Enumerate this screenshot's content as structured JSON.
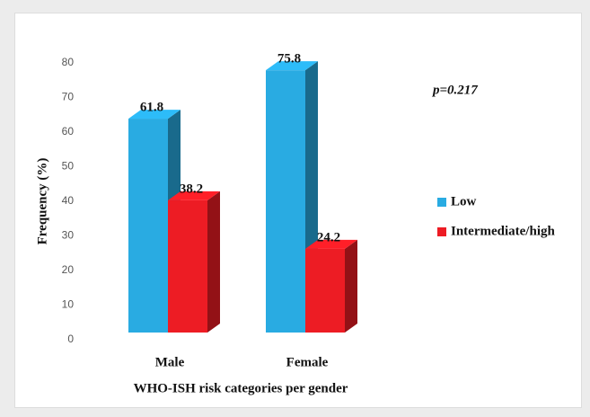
{
  "chart_data": {
    "type": "bar3d",
    "categories": [
      "Male",
      "Female"
    ],
    "series": [
      {
        "name": "Low",
        "color": "#29abe2",
        "values": [
          61.8,
          75.8
        ]
      },
      {
        "name": "Intermediate/high",
        "color": "#ed1c24",
        "values": [
          38.2,
          24.2
        ]
      }
    ],
    "ylabel": "Frequency (%)",
    "xlabel": "WHO-ISH risk categories per gender",
    "annotation": "p=0.217",
    "ylim": [
      0,
      80
    ],
    "yticks": [
      0,
      10,
      20,
      30,
      40,
      50,
      60,
      70,
      80
    ]
  }
}
